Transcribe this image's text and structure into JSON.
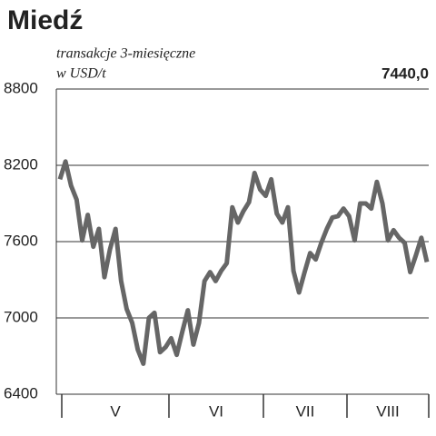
{
  "chart_data": {
    "type": "line",
    "title": "Miedź",
    "subtitle": "transakcje 3-miesięczne",
    "unit": "w USD/t",
    "months": [
      "V",
      "VI",
      "VII",
      "VIII"
    ],
    "categories": [
      null,
      null,
      null,
      null,
      null,
      null,
      null,
      null,
      null,
      null,
      null,
      null,
      null,
      null,
      null,
      null,
      null,
      null,
      null,
      null,
      null,
      null,
      null,
      null,
      null,
      null,
      null,
      null,
      null,
      null,
      null,
      null,
      null,
      null,
      null,
      null,
      null,
      null,
      null,
      null,
      null,
      null,
      null,
      null,
      null,
      null,
      null,
      null,
      null,
      null,
      null,
      null,
      null,
      null,
      null,
      null,
      null,
      null,
      null,
      null,
      null,
      null,
      null,
      null,
      null,
      null,
      null
    ],
    "series": [
      {
        "name": null,
        "color": "#666666",
        "values": [
          8090,
          8230,
          8040,
          7930,
          7610,
          7810,
          7560,
          7700,
          7320,
          7540,
          7700,
          7290,
          7070,
          6960,
          6750,
          6640,
          7000,
          7040,
          6730,
          6770,
          6840,
          6710,
          6890,
          7060,
          6790,
          6960,
          7290,
          7360,
          7290,
          7370,
          7430,
          7870,
          7750,
          7840,
          7910,
          8140,
          8010,
          7960,
          8090,
          7820,
          7750,
          7870,
          7370,
          7200,
          7360,
          7510,
          7460,
          7590,
          7700,
          7790,
          7800,
          7860,
          7800,
          7610,
          7900,
          7900,
          7860,
          8070,
          7900,
          7610,
          7690,
          7630,
          7590,
          7360,
          7490,
          7630,
          7440
        ],
        "value_labels": [
          null,
          null,
          null,
          null,
          null,
          null,
          null,
          null,
          null,
          null,
          null,
          null,
          null,
          null,
          null,
          null,
          null,
          null,
          null,
          null,
          null,
          null,
          null,
          null,
          null,
          null,
          null,
          null,
          null,
          null,
          null,
          null,
          null,
          null,
          null,
          null,
          null,
          null,
          null,
          null,
          null,
          null,
          null,
          null,
          null,
          null,
          null,
          null,
          null,
          null,
          null,
          null,
          null,
          null,
          null,
          null,
          null,
          null,
          null,
          null,
          null,
          null,
          null,
          null,
          null,
          null,
          "7440,0"
        ]
      }
    ],
    "ylim": [
      6400,
      8800
    ],
    "yticks": [
      6400,
      7000,
      7600,
      8200,
      8800
    ],
    "grid": true
  }
}
